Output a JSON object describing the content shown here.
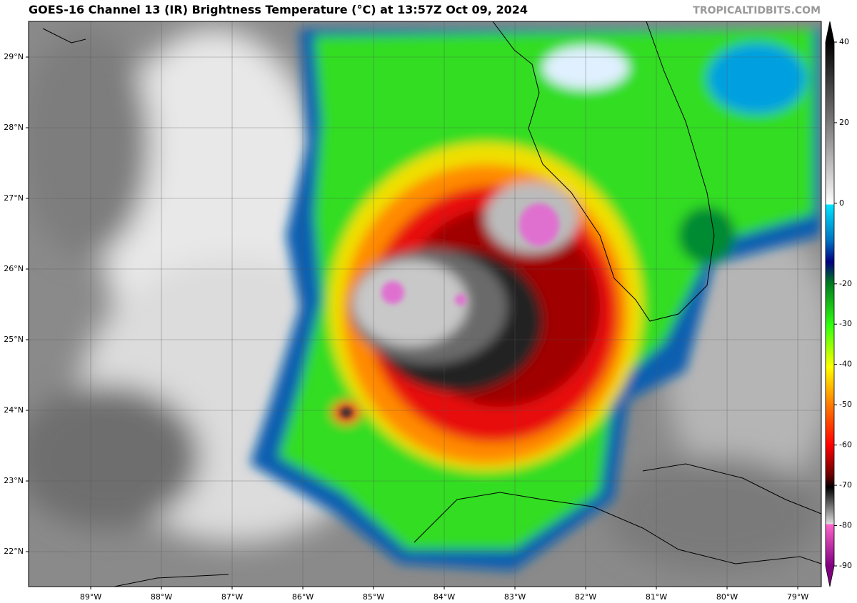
{
  "title": "GOES-16 Channel 13 (IR) Brightness Temperature (°C) at 13:57Z Oct 09, 2024",
  "watermark": "TROPICALTIDBITS.COM",
  "map": {
    "xlim": [
      -89.879,
      -78.667
    ],
    "ylim": [
      21.505,
      29.505
    ],
    "xticks": [
      {
        "value": -89,
        "label": "89°W"
      },
      {
        "value": -88,
        "label": "88°W"
      },
      {
        "value": -87,
        "label": "87°W"
      },
      {
        "value": -86,
        "label": "86°W"
      },
      {
        "value": -85,
        "label": "85°W"
      },
      {
        "value": -84,
        "label": "84°W"
      },
      {
        "value": -83,
        "label": "83°W"
      },
      {
        "value": -82,
        "label": "82°W"
      },
      {
        "value": -81,
        "label": "81°W"
      },
      {
        "value": -80,
        "label": "80°W"
      },
      {
        "value": -79,
        "label": "79°W"
      }
    ],
    "yticks": [
      {
        "value": 29,
        "label": "29°N"
      },
      {
        "value": 28,
        "label": "28°N"
      },
      {
        "value": 27,
        "label": "27°N"
      },
      {
        "value": 26,
        "label": "26°N"
      },
      {
        "value": 25,
        "label": "25°N"
      },
      {
        "value": 24,
        "label": "24°N"
      },
      {
        "value": 23,
        "label": "23°N"
      },
      {
        "value": 22,
        "label": "22°N"
      }
    ]
  },
  "colorbar": {
    "clim": [
      -90,
      40
    ],
    "ticks": [
      40,
      20,
      0,
      -20,
      -30,
      -40,
      -50,
      -60,
      -70,
      -80,
      -90
    ]
  }
}
